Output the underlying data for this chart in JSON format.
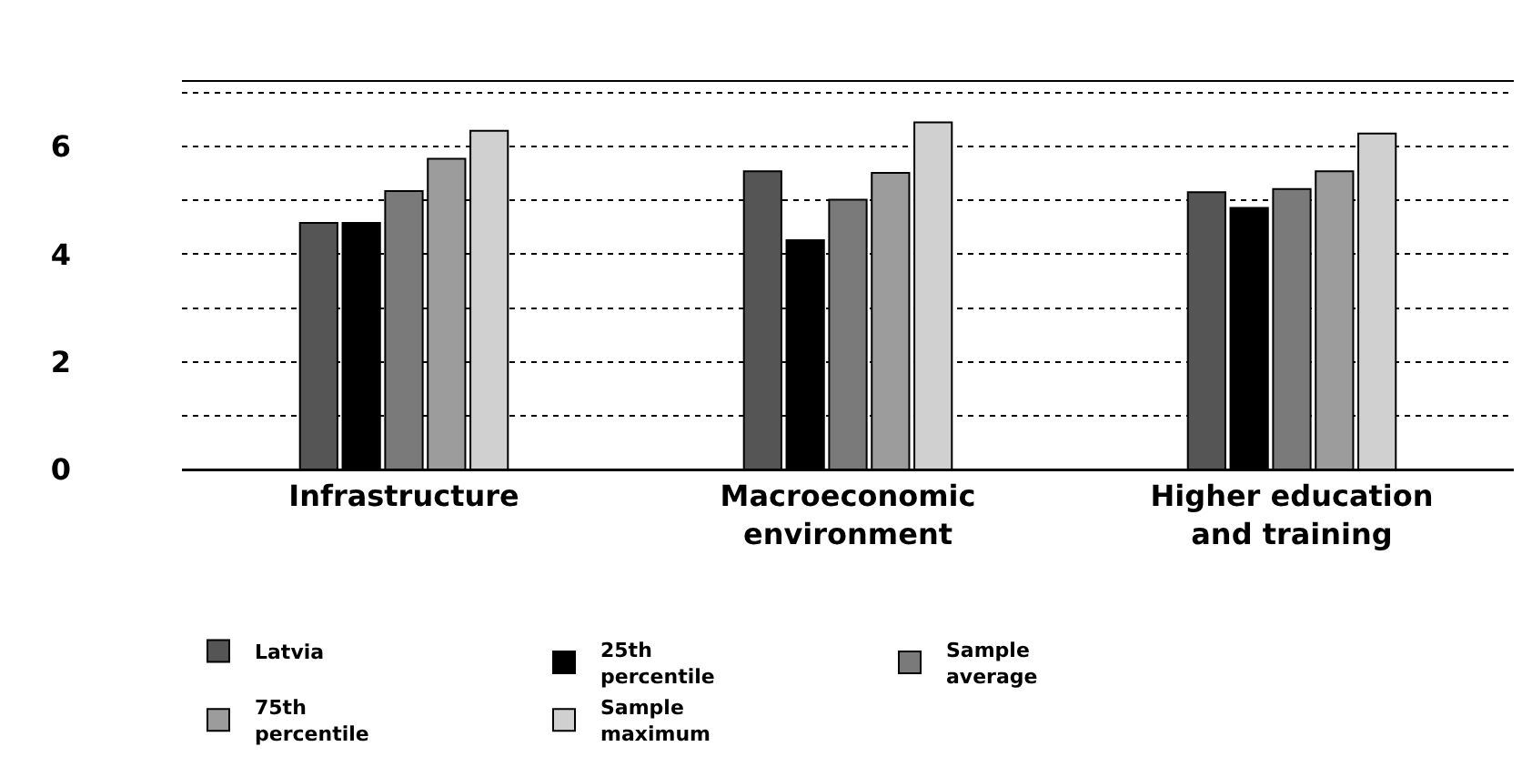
{
  "chart_data": {
    "type": "bar",
    "categories": [
      "Infrastructure",
      "Macroeconomic environment",
      "Higher education and training"
    ],
    "series": [
      {
        "name": "Latvia",
        "color": "#555555",
        "values": [
          4.58,
          5.54,
          5.15
        ]
      },
      {
        "name": "25th percentile",
        "color": "#000000",
        "values": [
          4.58,
          4.26,
          4.86
        ]
      },
      {
        "name": "Sample average",
        "color": "#7a7a7a",
        "values": [
          5.17,
          5.01,
          5.21
        ]
      },
      {
        "name": "75th percentile",
        "color": "#9c9c9c",
        "values": [
          5.77,
          5.51,
          5.54
        ]
      },
      {
        "name": "Sample maximum",
        "color": "#d0d0d0",
        "values": [
          6.29,
          6.45,
          6.24
        ]
      }
    ],
    "ylim": [
      0,
      7.2
    ],
    "yticks": [
      0,
      {
        "value": 1,
        "label": null
      },
      2,
      {
        "value": 3,
        "label": null
      },
      4,
      {
        "value": 5,
        "label": null
      },
      6,
      {
        "value": 7,
        "label": null
      }
    ],
    "grid": "y",
    "legend": "bottom"
  }
}
